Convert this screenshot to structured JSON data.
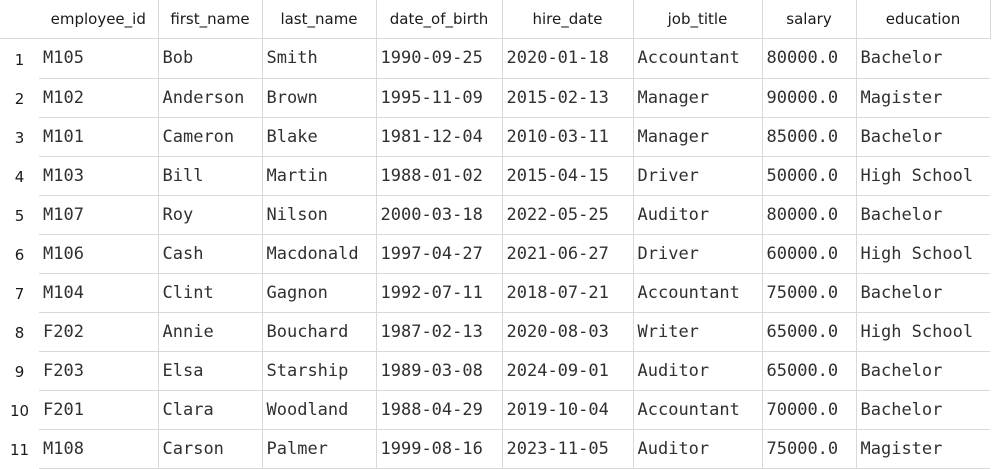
{
  "columns": [
    "employee_id",
    "first_name",
    "last_name",
    "date_of_birth",
    "hire_date",
    "job_title",
    "salary",
    "education"
  ],
  "rows": [
    {
      "num": "1",
      "cells": [
        "M105",
        "Bob",
        "Smith",
        "1990-09-25",
        "2020-01-18",
        "Accountant",
        "80000.0",
        "Bachelor"
      ]
    },
    {
      "num": "2",
      "cells": [
        "M102",
        "Anderson",
        "Brown",
        "1995-11-09",
        "2015-02-13",
        "Manager",
        "90000.0",
        "Magister"
      ]
    },
    {
      "num": "3",
      "cells": [
        "M101",
        "Cameron",
        "Blake",
        "1981-12-04",
        "2010-03-11",
        "Manager",
        "85000.0",
        "Bachelor"
      ]
    },
    {
      "num": "4",
      "cells": [
        "M103",
        "Bill",
        "Martin",
        "1988-01-02",
        "2015-04-15",
        "Driver",
        "50000.0",
        "High School"
      ]
    },
    {
      "num": "5",
      "cells": [
        "M107",
        "Roy",
        "Nilson",
        "2000-03-18",
        "2022-05-25",
        "Auditor",
        "80000.0",
        "Bachelor"
      ]
    },
    {
      "num": "6",
      "cells": [
        "M106",
        "Cash",
        "Macdonald",
        "1997-04-27",
        "2021-06-27",
        "Driver",
        "60000.0",
        "High School"
      ]
    },
    {
      "num": "7",
      "cells": [
        "M104",
        "Clint",
        "Gagnon",
        "1992-07-11",
        "2018-07-21",
        "Accountant",
        "75000.0",
        "Bachelor"
      ]
    },
    {
      "num": "8",
      "cells": [
        "F202",
        "Annie",
        "Bouchard",
        "1987-02-13",
        "2020-08-03",
        "Writer",
        "65000.0",
        "High School"
      ]
    },
    {
      "num": "9",
      "cells": [
        "F203",
        "Elsa",
        "Starship",
        "1989-03-08",
        "2024-09-01",
        "Auditor",
        "65000.0",
        "Bachelor"
      ]
    },
    {
      "num": "10",
      "cells": [
        "F201",
        "Clara",
        "Woodland",
        "1988-04-29",
        "2019-10-04",
        "Accountant",
        "70000.0",
        "Bachelor"
      ]
    },
    {
      "num": "11",
      "cells": [
        "M108",
        "Carson",
        "Palmer",
        "1999-08-16",
        "2023-11-05",
        "Auditor",
        "75000.0",
        "Magister"
      ]
    }
  ]
}
